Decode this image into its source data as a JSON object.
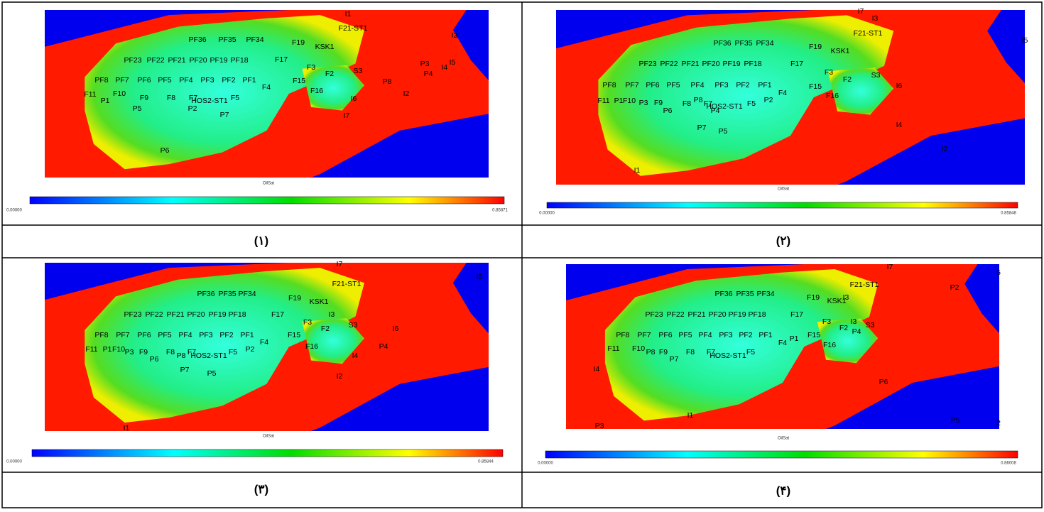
{
  "panels": [
    {
      "labels": [
        "I1",
        "F21-ST1",
        "I3",
        "PF36",
        "PF35",
        "PF34",
        "F19",
        "KSK1",
        "PF23",
        "PF22",
        "PF21",
        "PF20",
        "PF19",
        "PF18",
        "F17",
        "P3",
        "I5",
        "F3",
        "I4",
        "P4",
        "F2",
        "S3",
        "PF8",
        "PF7",
        "PF6",
        "PF5",
        "PF4",
        "PF3",
        "PF2",
        "PF1",
        "F15",
        "P8",
        "F4",
        "F16",
        "I2",
        "I6",
        "F11",
        "F10",
        "P1",
        "F9",
        "F8",
        "F7",
        "HOS2-ST1",
        "F5",
        "P5",
        "P2",
        "P7",
        "I7",
        "P6"
      ],
      "property": "OilSat",
      "scale_min": "0.00000",
      "scale_max": "0.85871",
      "caption": "(۱)"
    },
    {
      "labels": [
        "I7",
        "I3",
        "F21-ST1",
        "I5",
        "PF36",
        "PF35",
        "PF34",
        "F19",
        "KSK1",
        "PF23",
        "PF22",
        "PF21",
        "PF20",
        "PF19",
        "PF18",
        "F17",
        "F3",
        "F2",
        "S3",
        "PF8",
        "PF7",
        "PF6",
        "PF5",
        "PF4",
        "PF3",
        "PF2",
        "PF1",
        "F15",
        "I6",
        "F4",
        "F16",
        "F11",
        "P1",
        "F10",
        "P3",
        "F9",
        "P6",
        "F8",
        "P8",
        "F7",
        "HOS2-ST1",
        "F5",
        "P4",
        "P2",
        "I4",
        "P7",
        "P5",
        "I2",
        "I1"
      ],
      "property": "OilSat",
      "scale_min": "0.00000",
      "scale_max": "0.85848",
      "caption": "(۲)"
    },
    {
      "labels": [
        "I7",
        "I5",
        "F21-ST1",
        "PF36",
        "PF35",
        "PF34",
        "F19",
        "KSK1",
        "I3",
        "PF23",
        "PF22",
        "PF21",
        "PF20",
        "PF19",
        "PF18",
        "F17",
        "F3",
        "F2",
        "S3",
        "I6",
        "PF8",
        "PF7",
        "PF6",
        "PF5",
        "PF4",
        "PF3",
        "PF2",
        "PF1",
        "F15",
        "F4",
        "P4",
        "P2",
        "F16",
        "F11",
        "P1",
        "F10",
        "P3",
        "F9",
        "P6",
        "F8",
        "P8",
        "F7",
        "HOS2-ST1",
        "F5",
        "I4",
        "P7",
        "P5",
        "I2",
        "I1"
      ],
      "property": "OilSat",
      "scale_min": "0.00000",
      "scale_max": "0.85844",
      "caption": "(۳)"
    },
    {
      "labels": [
        "I7",
        "F21-ST1",
        "5",
        "P2",
        "PF36",
        "PF35",
        "PF34",
        "F19",
        "KSK1",
        "I3",
        "PF23",
        "PF22",
        "PF21",
        "PF20",
        "PF19",
        "PF18",
        "F17",
        "F3",
        "I3",
        "F2",
        "S3",
        "P4",
        "PF8",
        "PF7",
        "PF6",
        "PF5",
        "PF4",
        "PF3",
        "PF2",
        "PF1",
        "F15",
        "P1",
        "F4",
        "F16",
        "F11",
        "F10",
        "P8",
        "F9",
        "P7",
        "F8",
        "F7",
        "HOS2-ST1",
        "F5",
        "I4",
        "P6",
        "I1",
        "P5",
        "2",
        "P3"
      ],
      "property": "OilSat",
      "scale_min": "0.00000",
      "scale_max": "0.86008",
      "caption": "(۴)"
    }
  ]
}
